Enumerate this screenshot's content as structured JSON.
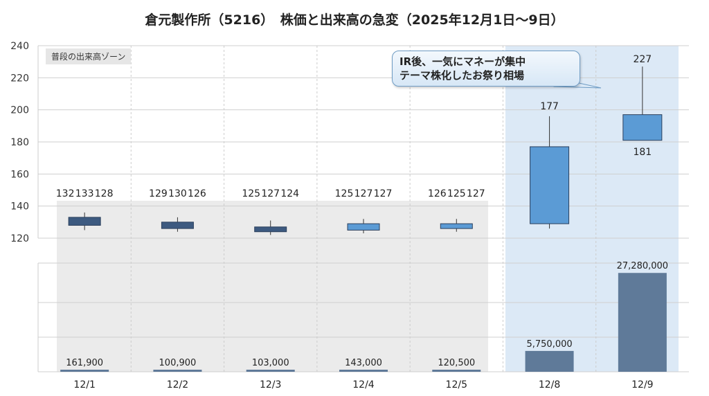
{
  "chart_data": {
    "type": "candlestick+bar",
    "title": "倉元製作所（5216）　株価と出来高の急変（2025年12月1日〜9日）",
    "categories": [
      "12/1",
      "12/2",
      "12/3",
      "12/4",
      "12/5",
      "12/8",
      "12/9"
    ],
    "price_ylim": [
      120,
      240
    ],
    "price_ticks": [
      120,
      140,
      160,
      180,
      200,
      220,
      240
    ],
    "candles": [
      {
        "open": 133,
        "close": 128,
        "high": 136,
        "low": 125,
        "labels": [
          "132",
          "133",
          "128"
        ],
        "color": "#3d5a80"
      },
      {
        "open": 130,
        "close": 126,
        "high": 133,
        "low": 124,
        "labels": [
          "129",
          "130",
          "126"
        ],
        "color": "#3d5a80"
      },
      {
        "open": 127,
        "close": 124,
        "high": 131,
        "low": 122,
        "labels": [
          "125",
          "127",
          "124"
        ],
        "color": "#3d5a80"
      },
      {
        "open": 125,
        "close": 129,
        "high": 132,
        "low": 123,
        "labels": [
          "125",
          "127",
          "127"
        ],
        "color": "#5b9bd5"
      },
      {
        "open": 126,
        "close": 129,
        "high": 132,
        "low": 124,
        "labels": [
          "126",
          "125",
          "127"
        ],
        "color": "#5b9bd5"
      },
      {
        "open": 129,
        "close": 177,
        "high": 196,
        "low": 126,
        "labels": [
          "177"
        ],
        "color": "#5b9bd5"
      },
      {
        "open": 181,
        "close": 197,
        "high": 227,
        "low": 181,
        "labels": [
          "227",
          "181"
        ],
        "color": "#5b9bd5"
      }
    ],
    "volume": [
      161900,
      100900,
      103000,
      143000,
      120500,
      5750000,
      27280000
    ],
    "volume_labels": [
      "161,900",
      "100,900",
      "103,000",
      "143,000",
      "120,500",
      "5,750,000",
      "27,280,000"
    ],
    "volume_ylim": [
      0,
      30000000
    ]
  },
  "annotations": {
    "normal_zone": "普段の出来高ゾーン",
    "callout_line1": "IR後、一気にマネーが集中",
    "callout_line2": "テーマ株化したお祭り相場"
  }
}
